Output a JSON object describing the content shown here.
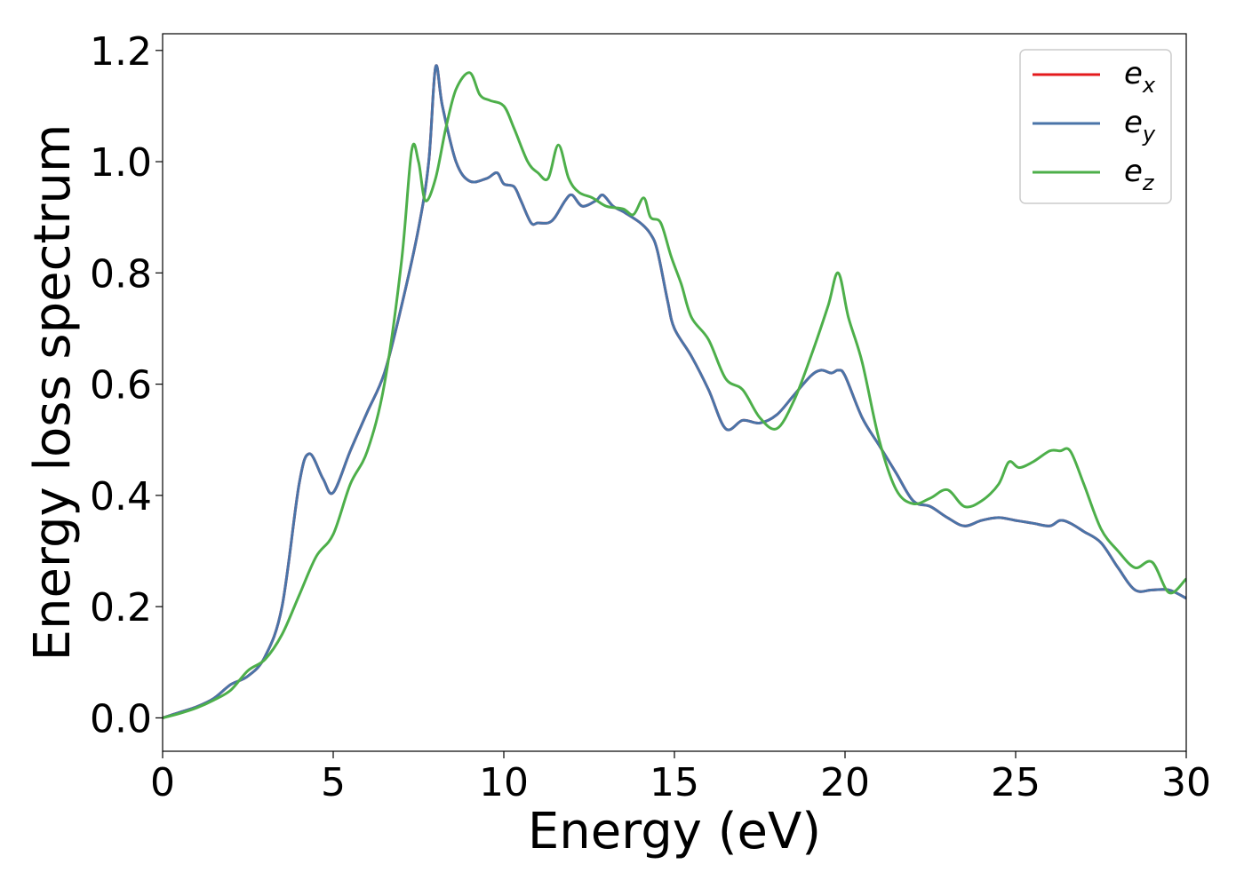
{
  "chart_data": {
    "type": "line",
    "title": "",
    "xlabel": "Energy (eV)",
    "ylabel": "Energy loss spectrum",
    "xlim": [
      0,
      30
    ],
    "ylim": [
      -0.06,
      1.23
    ],
    "x_ticks": [
      0,
      5,
      10,
      15,
      20,
      25,
      30
    ],
    "x_tick_labels": [
      "0",
      "5",
      "10",
      "15",
      "20",
      "25",
      "30"
    ],
    "y_ticks": [
      0.0,
      0.2,
      0.4,
      0.6,
      0.8,
      1.0,
      1.2
    ],
    "y_tick_labels": [
      "0.0",
      "0.2",
      "0.4",
      "0.6",
      "0.8",
      "1.0",
      "1.2"
    ],
    "grid": false,
    "legend_position": "top-right",
    "series": [
      {
        "name": "e_x",
        "legend_base": "e",
        "legend_sub": "x",
        "color": "#e41a1c",
        "x": [
          0,
          0.5,
          1,
          1.5,
          2,
          2.5,
          3,
          3.5,
          4,
          4.3,
          4.7,
          5,
          5.5,
          6,
          6.5,
          7,
          7.5,
          7.8,
          8,
          8.2,
          8.6,
          9,
          9.5,
          9.8,
          10,
          10.3,
          10.5,
          10.8,
          11,
          11.3,
          11.5,
          11.8,
          12,
          12.3,
          12.7,
          12.9,
          13.2,
          13.5,
          14,
          14.3,
          14.5,
          14.8,
          15,
          15.5,
          16,
          16.5,
          17,
          17.5,
          18,
          18.5,
          19,
          19.3,
          19.6,
          19.8,
          20,
          20.5,
          21,
          21.5,
          22,
          22.5,
          23,
          23.5,
          24,
          24.5,
          25,
          25.5,
          26,
          26.3,
          26.6,
          27,
          27.5,
          28,
          28.5,
          29,
          29.5,
          30
        ],
        "y": [
          0.0,
          0.01,
          0.02,
          0.035,
          0.06,
          0.075,
          0.11,
          0.2,
          0.42,
          0.475,
          0.43,
          0.405,
          0.48,
          0.55,
          0.62,
          0.74,
          0.88,
          1.0,
          1.17,
          1.1,
          1.0,
          0.965,
          0.97,
          0.98,
          0.96,
          0.955,
          0.93,
          0.89,
          0.89,
          0.89,
          0.9,
          0.93,
          0.94,
          0.92,
          0.93,
          0.94,
          0.92,
          0.91,
          0.89,
          0.87,
          0.84,
          0.75,
          0.7,
          0.65,
          0.59,
          0.52,
          0.535,
          0.53,
          0.545,
          0.58,
          0.615,
          0.625,
          0.62,
          0.625,
          0.615,
          0.54,
          0.49,
          0.44,
          0.39,
          0.38,
          0.36,
          0.345,
          0.355,
          0.36,
          0.355,
          0.35,
          0.345,
          0.355,
          0.35,
          0.335,
          0.315,
          0.27,
          0.23,
          0.23,
          0.23,
          0.215
        ]
      },
      {
        "name": "e_y",
        "legend_base": "e",
        "legend_sub": "y",
        "color": "#4a74a8",
        "x": [
          0,
          0.5,
          1,
          1.5,
          2,
          2.5,
          3,
          3.5,
          4,
          4.3,
          4.7,
          5,
          5.5,
          6,
          6.5,
          7,
          7.5,
          7.8,
          8,
          8.2,
          8.6,
          9,
          9.5,
          9.8,
          10,
          10.3,
          10.5,
          10.8,
          11,
          11.3,
          11.5,
          11.8,
          12,
          12.3,
          12.7,
          12.9,
          13.2,
          13.5,
          14,
          14.3,
          14.5,
          14.8,
          15,
          15.5,
          16,
          16.5,
          17,
          17.5,
          18,
          18.5,
          19,
          19.3,
          19.6,
          19.8,
          20,
          20.5,
          21,
          21.5,
          22,
          22.5,
          23,
          23.5,
          24,
          24.5,
          25,
          25.5,
          26,
          26.3,
          26.6,
          27,
          27.5,
          28,
          28.5,
          29,
          29.5,
          30
        ],
        "y": [
          0.0,
          0.01,
          0.02,
          0.035,
          0.06,
          0.075,
          0.11,
          0.2,
          0.42,
          0.475,
          0.43,
          0.405,
          0.48,
          0.55,
          0.62,
          0.74,
          0.88,
          1.0,
          1.17,
          1.1,
          1.0,
          0.965,
          0.97,
          0.98,
          0.96,
          0.955,
          0.93,
          0.89,
          0.89,
          0.89,
          0.9,
          0.93,
          0.94,
          0.92,
          0.93,
          0.94,
          0.92,
          0.91,
          0.89,
          0.87,
          0.84,
          0.75,
          0.7,
          0.65,
          0.59,
          0.52,
          0.535,
          0.53,
          0.545,
          0.58,
          0.615,
          0.625,
          0.62,
          0.625,
          0.615,
          0.54,
          0.49,
          0.44,
          0.39,
          0.38,
          0.36,
          0.345,
          0.355,
          0.36,
          0.355,
          0.35,
          0.345,
          0.355,
          0.35,
          0.335,
          0.315,
          0.27,
          0.23,
          0.23,
          0.23,
          0.215
        ]
      },
      {
        "name": "e_z",
        "legend_base": "e",
        "legend_sub": "z",
        "color": "#4daf4a",
        "x": [
          0,
          0.5,
          1,
          1.5,
          2,
          2.5,
          3,
          3.5,
          4,
          4.5,
          5,
          5.5,
          6,
          6.5,
          7,
          7.3,
          7.5,
          7.7,
          8,
          8.3,
          8.6,
          9,
          9.3,
          9.6,
          10,
          10.3,
          10.7,
          11,
          11.3,
          11.6,
          11.9,
          12.2,
          12.6,
          13,
          13.5,
          13.8,
          14.1,
          14.3,
          14.6,
          14.9,
          15.2,
          15.5,
          16,
          16.5,
          17,
          17.5,
          18,
          18.5,
          19,
          19.5,
          19.8,
          20.1,
          20.5,
          21,
          21.5,
          22,
          22.5,
          23,
          23.5,
          24,
          24.5,
          24.8,
          25.1,
          25.5,
          26,
          26.3,
          26.6,
          27,
          27.5,
          28,
          28.5,
          29,
          29.5,
          30
        ],
        "y": [
          0.0,
          0.008,
          0.018,
          0.032,
          0.05,
          0.085,
          0.105,
          0.15,
          0.22,
          0.29,
          0.33,
          0.42,
          0.48,
          0.6,
          0.82,
          1.02,
          1.0,
          0.93,
          0.97,
          1.06,
          1.13,
          1.16,
          1.12,
          1.11,
          1.1,
          1.06,
          1.0,
          0.98,
          0.97,
          1.03,
          0.97,
          0.945,
          0.935,
          0.92,
          0.915,
          0.905,
          0.935,
          0.9,
          0.89,
          0.83,
          0.78,
          0.72,
          0.68,
          0.61,
          0.59,
          0.54,
          0.52,
          0.57,
          0.65,
          0.74,
          0.8,
          0.72,
          0.64,
          0.5,
          0.41,
          0.385,
          0.395,
          0.41,
          0.38,
          0.39,
          0.42,
          0.46,
          0.45,
          0.46,
          0.48,
          0.48,
          0.48,
          0.42,
          0.34,
          0.3,
          0.27,
          0.28,
          0.225,
          0.25
        ]
      }
    ]
  }
}
